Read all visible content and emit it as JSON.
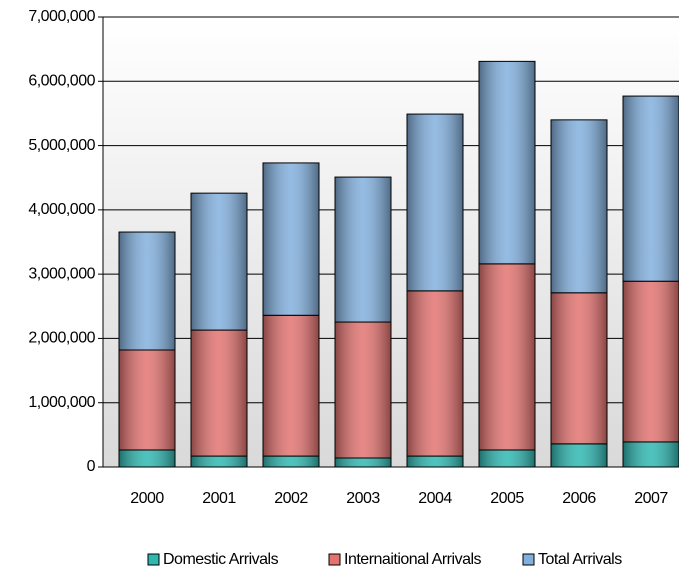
{
  "chart_data": {
    "type": "bar",
    "stacked": true,
    "categories": [
      "2000",
      "2001",
      "2002",
      "2003",
      "2004",
      "2005",
      "2006",
      "2007"
    ],
    "series": [
      {
        "name": "Domestic Arrivals",
        "color": "#2fb8b2",
        "values": [
          265000,
          170000,
          170000,
          140000,
          170000,
          265000,
          360000,
          390000
        ]
      },
      {
        "name": "Internaitional Arrivals",
        "color": "#e37370",
        "values": [
          1555000,
          1960000,
          2190000,
          2115000,
          2570000,
          2895000,
          2350000,
          2500000
        ]
      },
      {
        "name": "Total Arrivals",
        "color": "#82b0de",
        "values": [
          1835000,
          2130000,
          2370000,
          2255000,
          2750000,
          3150000,
          2690000,
          2880000
        ]
      }
    ],
    "ylim": [
      0,
      7000000
    ],
    "yticks": [
      {
        "value": 0,
        "label": "0"
      },
      {
        "value": 1000000,
        "label": "1,000,000"
      },
      {
        "value": 2000000,
        "label": "2,000,000"
      },
      {
        "value": 3000000,
        "label": "3,000,000"
      },
      {
        "value": 4000000,
        "label": "4,000,000"
      },
      {
        "value": 5000000,
        "label": "5,000,000"
      },
      {
        "value": 6000000,
        "label": "6,000,000"
      },
      {
        "value": 7000000,
        "label": "7,000,000"
      }
    ],
    "grid": true,
    "legend": "bottom"
  }
}
